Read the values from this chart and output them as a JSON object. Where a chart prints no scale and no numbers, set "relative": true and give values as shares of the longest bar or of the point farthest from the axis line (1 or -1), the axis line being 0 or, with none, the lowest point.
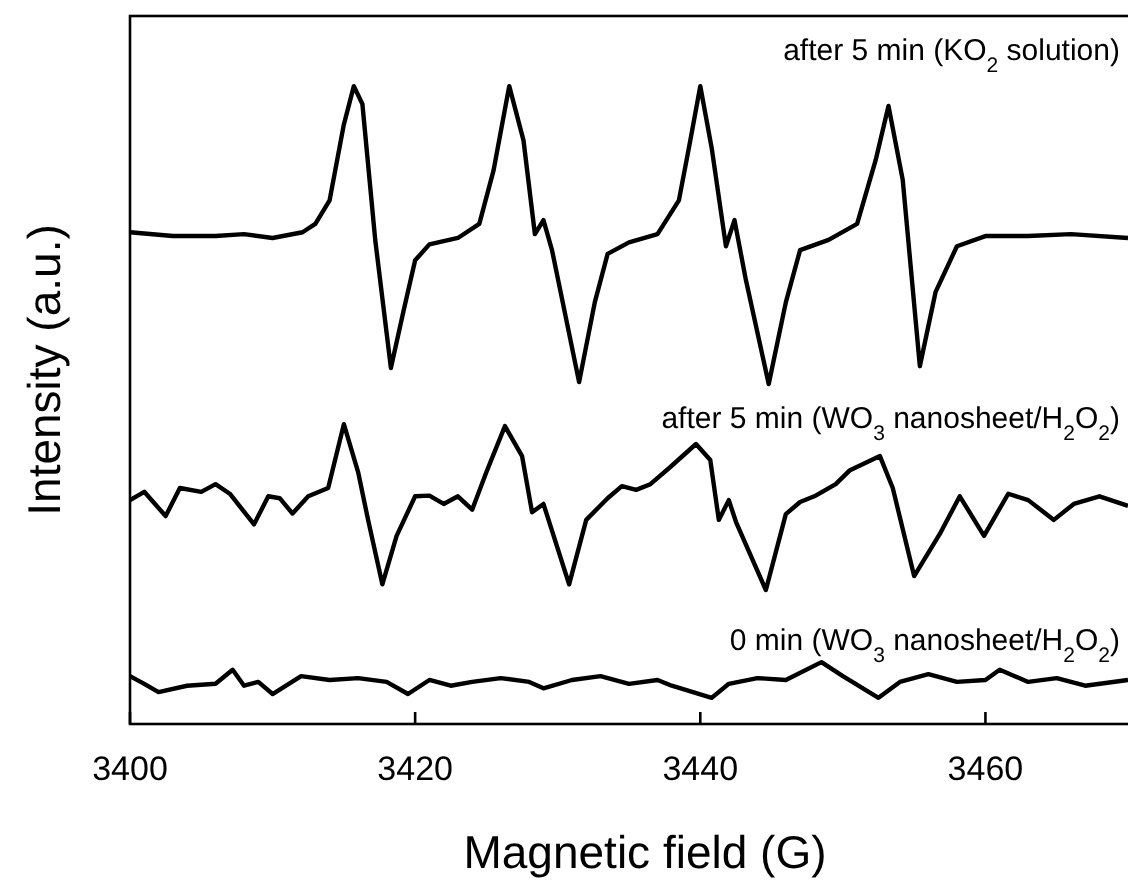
{
  "chart_data": {
    "type": "line",
    "xlabel": "Magnetic field (G)",
    "ylabel": "Intensity (a.u.)",
    "relative": true,
    "xlim": [
      3400,
      3470
    ],
    "xticks": [
      3400,
      3420,
      3440,
      3460
    ],
    "grid": false,
    "line_style": "solid",
    "tick_labels": "x",
    "series": [
      {
        "name": "after 5 min (KO$_{2}$ solution)",
        "color": "#000000",
        "x": [
          3400,
          3403,
          3406,
          3408,
          3410,
          3412.1,
          3413,
          3414,
          3415,
          3415.7,
          3416.3,
          3417.2,
          3418.3,
          3419.2,
          3420,
          3421,
          3423,
          3424.5,
          3425.5,
          3426.6,
          3427.6,
          3428.4,
          3429,
          3429.6,
          3431.5,
          3432.6,
          3433.5,
          3435,
          3437,
          3438.5,
          3439.3,
          3440,
          3440.8,
          3441.8,
          3442.4,
          3443.2,
          3444.8,
          3446,
          3447,
          3449,
          3451,
          3452.3,
          3453.2,
          3454.2,
          3455.4,
          3456.5,
          3458,
          3460,
          3463,
          3466,
          3470
        ],
        "values": [
          0.771,
          0.765,
          0.765,
          0.768,
          0.762,
          0.771,
          0.784,
          0.821,
          0.94,
          1.0,
          0.972,
          0.759,
          0.558,
          0.649,
          0.727,
          0.752,
          0.762,
          0.784,
          0.868,
          1.0,
          0.915,
          0.768,
          0.79,
          0.743,
          0.536,
          0.661,
          0.737,
          0.755,
          0.768,
          0.821,
          0.915,
          1.0,
          0.903,
          0.749,
          0.79,
          0.696,
          0.533,
          0.661,
          0.743,
          0.759,
          0.784,
          0.884,
          0.969,
          0.853,
          0.561,
          0.677,
          0.749,
          0.765,
          0.765,
          0.768,
          0.762
        ]
      },
      {
        "name": "after 5 min (WO$_{3}$ nanosheet/H$_{2}$O$_{2}$)",
        "color": "#000000",
        "x": [
          3400,
          3401,
          3402.5,
          3403.5,
          3405,
          3406,
          3407,
          3408.7,
          3409.7,
          3410.5,
          3411.4,
          3412.5,
          3413.9,
          3415,
          3416,
          3416.7,
          3417.7,
          3418.7,
          3420,
          3421,
          3422,
          3423,
          3424,
          3425,
          3426.3,
          3427.5,
          3428.2,
          3429,
          3430.8,
          3432,
          3433.5,
          3434.5,
          3435.5,
          3436.5,
          3437.8,
          3439.7,
          3440.7,
          3441.3,
          3442,
          3442.5,
          3444.6,
          3446,
          3447,
          3448,
          3449.5,
          3450.5,
          3452.6,
          3453.5,
          3455,
          3456.8,
          3458.2,
          3459.9,
          3461.6,
          3463,
          3464.8,
          3466.2,
          3468,
          3470
        ],
        "values": [
          0.351,
          0.364,
          0.326,
          0.37,
          0.364,
          0.376,
          0.361,
          0.313,
          0.357,
          0.354,
          0.33,
          0.357,
          0.37,
          0.47,
          0.395,
          0.32,
          0.219,
          0.295,
          0.357,
          0.358,
          0.345,
          0.357,
          0.336,
          0.395,
          0.467,
          0.42,
          0.332,
          0.345,
          0.219,
          0.32,
          0.354,
          0.373,
          0.367,
          0.376,
          0.401,
          0.439,
          0.414,
          0.32,
          0.351,
          0.317,
          0.21,
          0.329,
          0.348,
          0.357,
          0.376,
          0.398,
          0.42,
          0.37,
          0.232,
          0.298,
          0.357,
          0.295,
          0.361,
          0.351,
          0.32,
          0.345,
          0.357,
          0.342
        ]
      },
      {
        "name": "0 min (WO$_{3}$ nanosheet/H$_{2}$O$_{2}$)",
        "color": "#000000",
        "x": [
          3400,
          3401,
          3402,
          3404,
          3406,
          3407.2,
          3408,
          3409,
          3410,
          3412,
          3414,
          3416,
          3418,
          3419.5,
          3421,
          3422.5,
          3424,
          3426,
          3428,
          3429,
          3431,
          3433,
          3435,
          3437,
          3438,
          3440.8,
          3442,
          3444,
          3446,
          3448.5,
          3450,
          3452.5,
          3454,
          3456,
          3458,
          3460,
          3461,
          3463,
          3465,
          3467,
          3470
        ],
        "values": [
          0.075,
          0.063,
          0.05,
          0.06,
          0.063,
          0.085,
          0.06,
          0.066,
          0.047,
          0.075,
          0.069,
          0.072,
          0.066,
          0.047,
          0.069,
          0.06,
          0.066,
          0.072,
          0.066,
          0.056,
          0.069,
          0.075,
          0.063,
          0.069,
          0.06,
          0.041,
          0.063,
          0.072,
          0.069,
          0.097,
          0.075,
          0.041,
          0.066,
          0.078,
          0.066,
          0.069,
          0.085,
          0.066,
          0.072,
          0.06,
          0.069
        ]
      }
    ]
  }
}
